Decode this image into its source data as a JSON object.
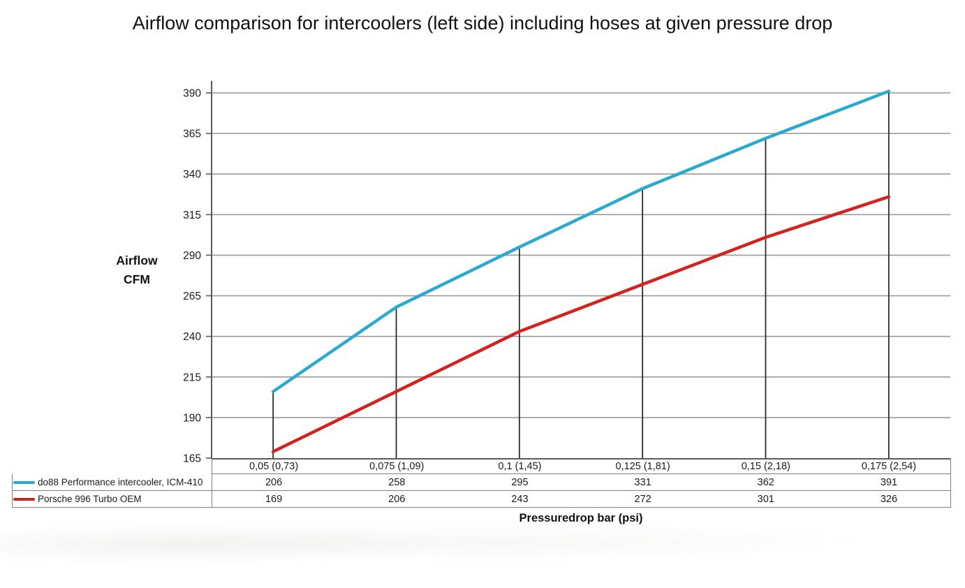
{
  "chart_data": {
    "type": "line",
    "title": "Airflow comparison for intercoolers (left side) including hoses at given pressure drop",
    "xlabel": "Pressuredrop bar (psi)",
    "ylabel": "Airflow\nCFM",
    "categories": [
      "0,05 (0,73)",
      "0,075 (1,09)",
      "0,1 (1,45)",
      "0,125 (1,81)",
      "0,15 (2,18)",
      "0,175 (2,54)"
    ],
    "series": [
      {
        "name": "do88 Performance intercooler, ICM-410",
        "color": "#2CA9CF",
        "values": [
          206,
          258,
          295,
          331,
          362,
          391
        ]
      },
      {
        "name": "Porsche 996 Turbo OEM",
        "color": "#D2231F",
        "values": [
          169,
          206,
          243,
          272,
          301,
          326
        ]
      }
    ],
    "y_axis": {
      "min": 165,
      "max": 390,
      "step": 25
    },
    "grid": true,
    "drop_lines": true,
    "legend_position": "table-left"
  },
  "colors": {
    "grid": "#9a9a9a",
    "axis": "#5a5a5a",
    "drop_line": "#2b2b2b",
    "table_border": "#7d7d7d",
    "text": "#1b1b1b"
  }
}
